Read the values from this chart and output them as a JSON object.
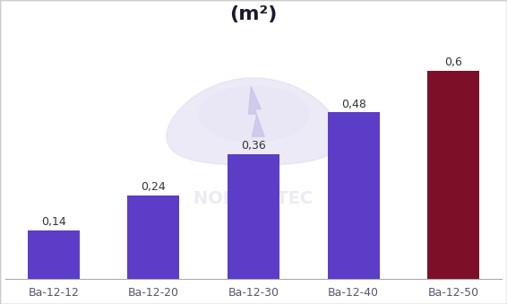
{
  "categories": [
    "Ba-12-12",
    "Ba-12-20",
    "Ba-12-30",
    "Ba-12-40",
    "Ba-12-50"
  ],
  "values": [
    0.14,
    0.24,
    0.36,
    0.48,
    0.6
  ],
  "bar_colors": [
    "#5b3dc8",
    "#5b3dc8",
    "#5b3dc8",
    "#5b3dc8",
    "#7d1028"
  ],
  "value_labels": [
    "0,14",
    "0,24",
    "0,36",
    "0,48",
    "0,6"
  ],
  "title": "(m²)",
  "title_fontsize": 16,
  "label_fontsize": 9,
  "tick_fontsize": 9,
  "ylim": [
    0,
    0.72
  ],
  "background_color": "#ffffff",
  "bar_width": 0.52,
  "label_color": "#333333",
  "border_color": "#cccccc",
  "watermark_color": "#dddaf0",
  "watermark_text": "NORDIC TEC",
  "watermark_alpha": 0.55
}
